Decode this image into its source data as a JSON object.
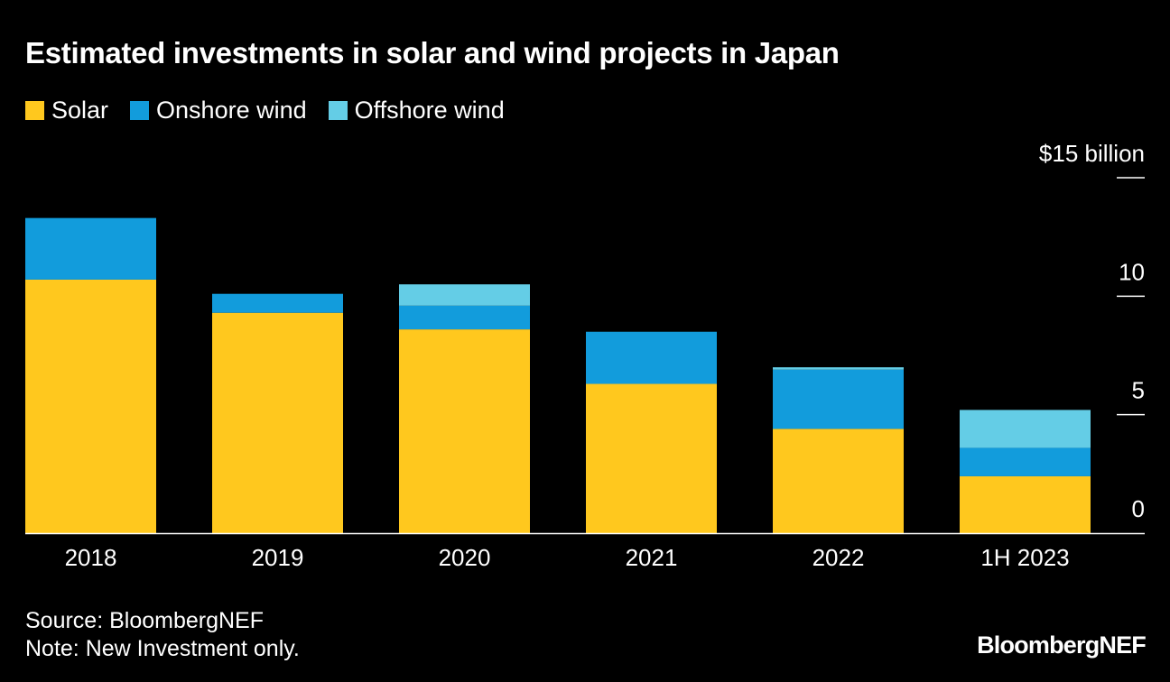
{
  "title": "Estimated investments in solar and wind projects in Japan",
  "legend": [
    {
      "label": "Solar",
      "color": "#FFC81E"
    },
    {
      "label": "Onshore wind",
      "color": "#129CDC"
    },
    {
      "label": "Offshore wind",
      "color": "#64CDE6"
    }
  ],
  "footer": {
    "source": "Source: BloombergNEF",
    "note": "Note: New Investment only."
  },
  "brand": "BloombergNEF",
  "chart_data": {
    "type": "bar",
    "stacked": true,
    "categories": [
      "2018",
      "2019",
      "2020",
      "2021",
      "2022",
      "1H 2023"
    ],
    "series": [
      {
        "name": "Solar",
        "color": "#FFC81E",
        "values": [
          10.7,
          9.3,
          8.6,
          6.3,
          4.4,
          2.4
        ]
      },
      {
        "name": "Onshore wind",
        "color": "#129CDC",
        "values": [
          2.6,
          0.8,
          1.0,
          2.2,
          2.5,
          1.2
        ]
      },
      {
        "name": "Offshore wind",
        "color": "#64CDE6",
        "values": [
          0,
          0,
          0.9,
          0,
          0.1,
          1.6
        ]
      }
    ],
    "y_ticks": [
      {
        "value": 0,
        "label": "0"
      },
      {
        "value": 5,
        "label": "5"
      },
      {
        "value": 10,
        "label": "10"
      },
      {
        "value": 15,
        "label": "$15 billion"
      }
    ],
    "ylim": [
      0,
      15
    ],
    "y_axis_position": "right",
    "grid": false
  }
}
